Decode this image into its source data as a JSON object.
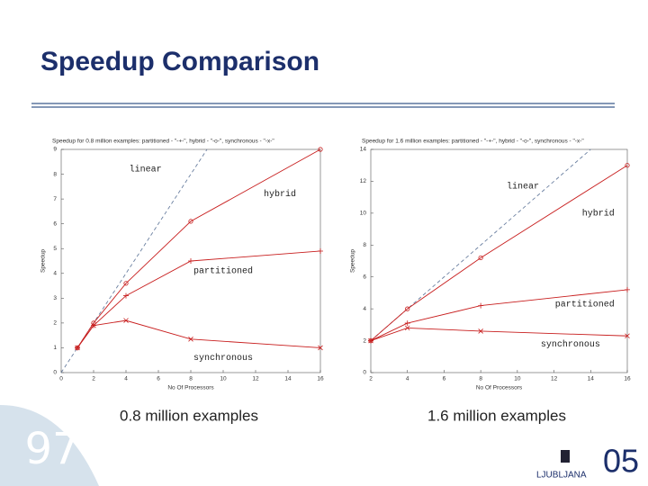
{
  "slide": {
    "title": "Speedup Comparison",
    "number": "97",
    "logo_city": "LJUBLJANA",
    "logo_year": "05"
  },
  "chart_data": [
    {
      "type": "line",
      "title": "Speedup for 0.8 million examples: partitioned - \"-+-\", hybrid - \"-o-\", synchronous - \"-x-\"",
      "caption": "0.8 million examples",
      "x_label": "No Of Processors",
      "y_label": "Speedup",
      "xlim": [
        0,
        16
      ],
      "xticks": [
        0,
        2,
        4,
        6,
        8,
        10,
        12,
        14,
        16
      ],
      "ylim": [
        0,
        9
      ],
      "yticks": [
        0,
        1,
        2,
        3,
        4,
        5,
        6,
        7,
        8,
        9
      ],
      "series": [
        {
          "name": "linear",
          "color": "#6a7fa0",
          "dashed": true,
          "marker": "none",
          "x": [
            0,
            9
          ],
          "values": [
            0,
            9
          ]
        },
        {
          "name": "hybrid",
          "color": "#c81e1e",
          "dashed": false,
          "marker": "o",
          "x": [
            1,
            2,
            4,
            8,
            16
          ],
          "values": [
            1,
            2,
            3.6,
            6.1,
            9
          ]
        },
        {
          "name": "partitioned",
          "color": "#c81e1e",
          "dashed": false,
          "marker": "+",
          "x": [
            1,
            2,
            4,
            8,
            16
          ],
          "values": [
            1,
            1.9,
            3.1,
            4.5,
            4.9
          ]
        },
        {
          "name": "synchronous",
          "color": "#c81e1e",
          "dashed": false,
          "marker": "x",
          "x": [
            1,
            2,
            4,
            8,
            16
          ],
          "values": [
            1,
            1.9,
            2.1,
            1.35,
            1
          ]
        }
      ]
    },
    {
      "type": "line",
      "title": "Speedup for 1.6 million examples: partitioned - \"-+-\", hybrid - \"-o-\", synchronous - \"-x-\"",
      "caption": "1.6 million examples",
      "x_label": "No Of Processors",
      "y_label": "Speedup",
      "xlim": [
        2,
        16
      ],
      "xticks": [
        2,
        4,
        6,
        8,
        10,
        12,
        14,
        16
      ],
      "ylim": [
        0,
        14
      ],
      "yticks": [
        0,
        2,
        4,
        6,
        8,
        10,
        12,
        14
      ],
      "series": [
        {
          "name": "linear",
          "color": "#6a7fa0",
          "dashed": true,
          "marker": "none",
          "x": [
            2,
            14
          ],
          "values": [
            2,
            14
          ]
        },
        {
          "name": "hybrid",
          "color": "#c81e1e",
          "dashed": false,
          "marker": "o",
          "x": [
            2,
            4,
            8,
            16
          ],
          "values": [
            2,
            4,
            7.2,
            13
          ]
        },
        {
          "name": "partitioned",
          "color": "#c81e1e",
          "dashed": false,
          "marker": "+",
          "x": [
            2,
            4,
            8,
            16
          ],
          "values": [
            2,
            3.1,
            4.2,
            5.2
          ]
        },
        {
          "name": "synchronous",
          "color": "#c81e1e",
          "dashed": false,
          "marker": "x",
          "x": [
            2,
            4,
            8,
            16
          ],
          "values": [
            2,
            2.8,
            2.6,
            2.3
          ]
        }
      ]
    }
  ]
}
